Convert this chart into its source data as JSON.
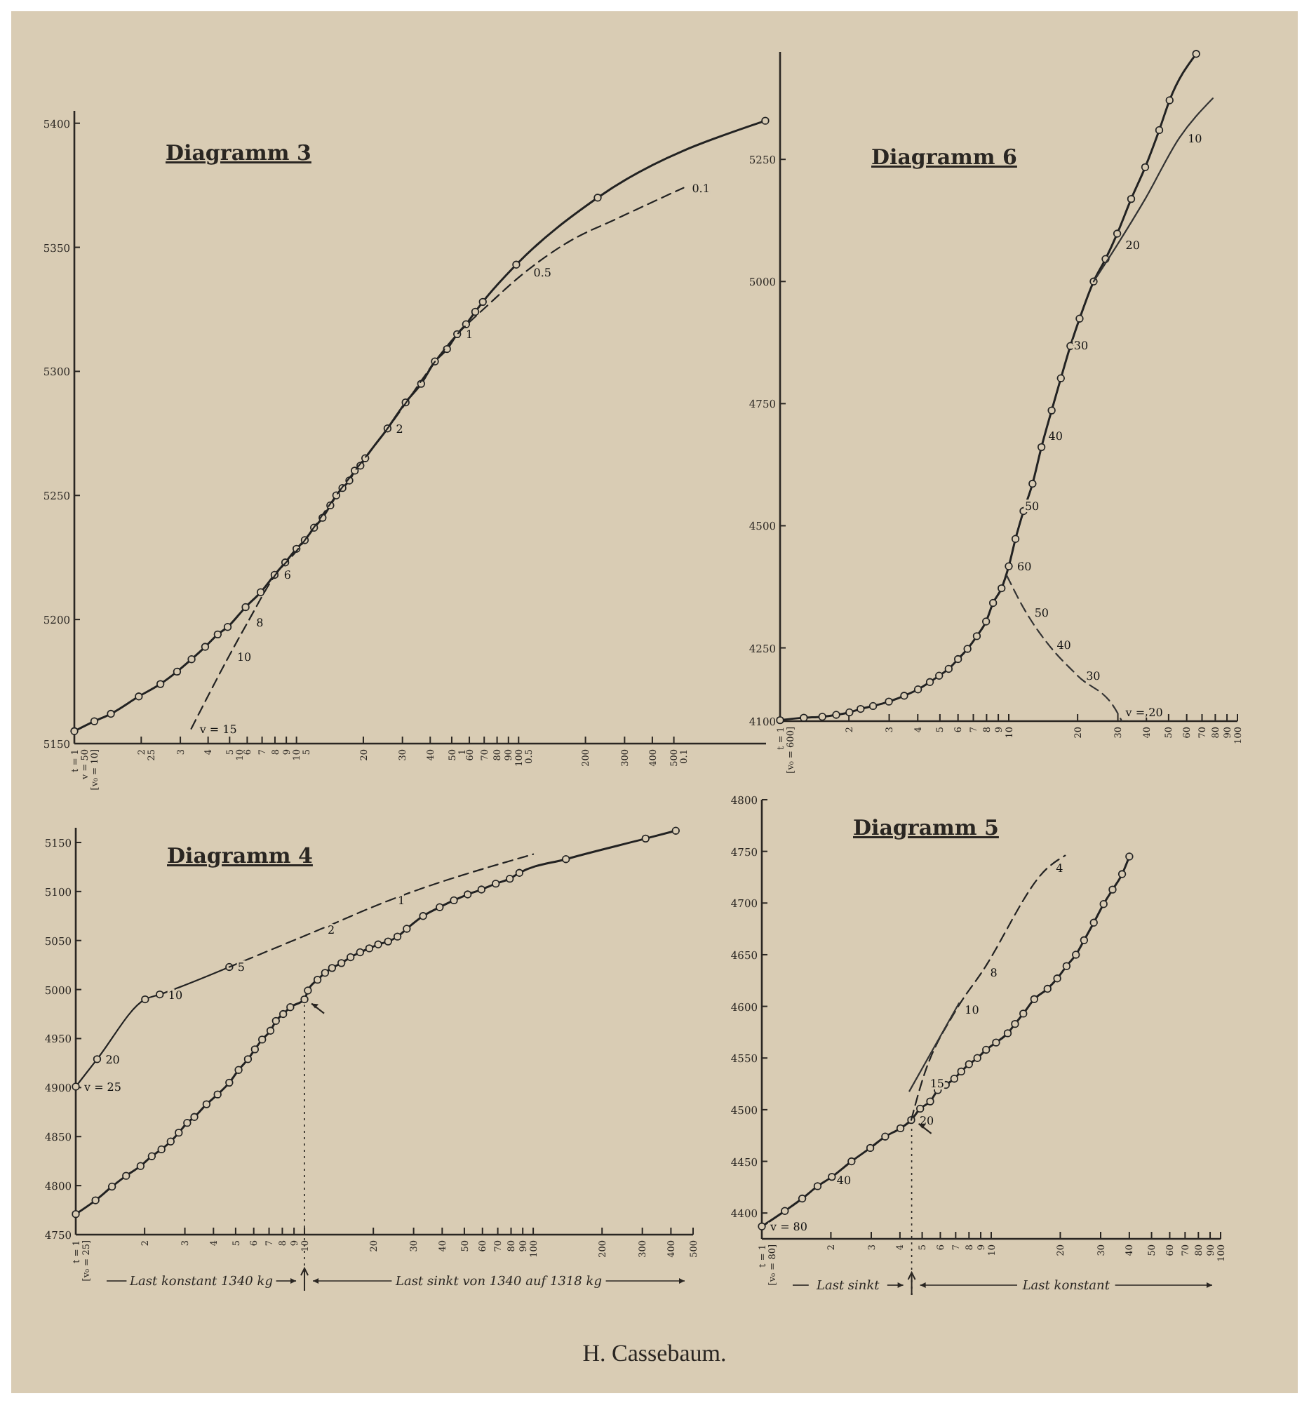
{
  "chart_data": [
    {
      "type": "line",
      "title": "Diagramm 3",
      "log": "x",
      "xlim": [
        1,
        1300
      ],
      "ylim": [
        5150,
        5405
      ],
      "xticks": [
        {
          "value": 1,
          "label": "t = 1\nv = 50\n[v₀ = 10]"
        },
        {
          "value": 2,
          "label": "2\n25"
        },
        3,
        4,
        {
          "value": 5,
          "label": "5\n10"
        },
        6,
        7,
        8,
        9,
        {
          "value": 10,
          "label": "10\n5"
        },
        20,
        30,
        40,
        {
          "value": 50,
          "label": "50\n1"
        },
        60,
        70,
        80,
        90,
        {
          "value": 100,
          "label": "100\n0.5"
        },
        200,
        300,
        400,
        {
          "value": 500,
          "label": "500\n0.1"
        }
      ],
      "yticks": [
        5150,
        5200,
        5250,
        5300,
        5350,
        5400
      ],
      "series": [
        {
          "color": "#222222",
          "line_style": "solid",
          "marker": "circle",
          "x": [
            1,
            1.23,
            1.46,
            1.95,
            2.44,
            2.9,
            3.37,
            3.88,
            4.42,
            4.9,
            5.9,
            6.9,
            7.97,
            8.9,
            10,
            10.9,
            12,
            13.1,
            14.2,
            15.1,
            16.1,
            17.3,
            18.3,
            19.4,
            20.4,
            25.7,
            31,
            36.4,
            42,
            47.6,
            52.9,
            58,
            63.8,
            69,
            97.6,
            227,
            1290
          ],
          "values": [
            5155,
            5159,
            5162,
            5169,
            5174,
            5179,
            5184,
            5189,
            5194,
            5197,
            5205,
            5211,
            5218,
            5223,
            5228.5,
            5232,
            5237,
            5241,
            5246,
            5250,
            5253,
            5256,
            5260,
            5262,
            5265,
            5277,
            5287.5,
            5295,
            5304,
            5309,
            5315,
            5319,
            5324,
            5328,
            5343,
            5370,
            5401
          ]
        },
        {
          "color": "#222222",
          "line_style": "dashed",
          "marker": "none",
          "x": [
            3.36,
            4.95,
            6.04,
            8.04,
            10,
            15.1,
            25.7,
            53,
            71.3,
            107,
            170,
            276,
            553
          ],
          "values": [
            5156,
            5185,
            5199,
            5218,
            5227.6,
            5250,
            5277,
            5315,
            5326,
            5340,
            5352.5,
            5361.5,
            5374
          ]
        }
      ],
      "annotations": [
        {
          "text": "v = 15",
          "x": 3.36,
          "y": 5156
        },
        {
          "text": "10",
          "x": 4.95,
          "y": 5185
        },
        {
          "text": "8",
          "x": 6.04,
          "y": 5199
        },
        {
          "text": "6",
          "x": 8.04,
          "y": 5218
        },
        {
          "text": "2",
          "x": 25.7,
          "y": 5277
        },
        {
          "text": "1",
          "x": 53,
          "y": 5315
        },
        {
          "text": "0.5",
          "x": 107,
          "y": 5340
        },
        {
          "text": "0.1",
          "x": 553,
          "y": 5374
        }
      ]
    },
    {
      "type": "line",
      "title": "Diagramm 6",
      "log": "x",
      "xlim": [
        1,
        100
      ],
      "ylim": [
        4100,
        5470
      ],
      "xticks": [
        {
          "value": 1,
          "label": "t = 1\n[v₀ = 600]"
        },
        2,
        3,
        4,
        5,
        6,
        7,
        8,
        9,
        10,
        20,
        30,
        40,
        50,
        60,
        70,
        80,
        90,
        100
      ],
      "yticks": [
        4100,
        4250,
        4500,
        4750,
        5000,
        5250
      ],
      "series": [
        {
          "color": "#222222",
          "line_style": "solid",
          "marker": "circle",
          "x": [
            1,
            1.27,
            1.53,
            1.76,
            2.01,
            2.25,
            2.55,
            2.99,
            3.49,
            4.01,
            4.52,
            4.96,
            5.46,
            6,
            6.6,
            7.25,
            7.96,
            8.54,
            9.3,
            10,
            10.7,
            11.6,
            12.7,
            13.9,
            15.4,
            16.9,
            18.6,
            20.4,
            23.5,
            26.5,
            29.8,
            34.3,
            39.5,
            45.5,
            50.5,
            66
          ],
          "values": [
            4102,
            4107,
            4109,
            4113,
            4118,
            4125,
            4131,
            4140,
            4152,
            4165,
            4180,
            4193,
            4207,
            4227,
            4248,
            4274,
            4304,
            4342,
            4372,
            4417,
            4473,
            4530,
            4586,
            4661,
            4736,
            4802,
            4868,
            4924,
            5000,
            5046,
            5098,
            5169,
            5234,
            5310,
            5371,
            5466
          ]
        },
        {
          "color": "#333333",
          "line_style": "solid",
          "marker": "none",
          "x": [
            23.5,
            29.8,
            39.5,
            55.7,
            78
          ],
          "values": [
            5000,
            5075,
            5169,
            5294,
            5375
          ]
        },
        {
          "color": "#333333",
          "line_style": "dashed",
          "marker": "none",
          "x": [
            9.8,
            11.9,
            14.9,
            20,
            29.8,
            31.2
          ],
          "values": [
            4398,
            4323,
            4257,
            4193,
            4118,
            4100
          ]
        }
      ],
      "annotations": [
        {
          "text": "60",
          "x": 10,
          "y": 4417
        },
        {
          "text": "50",
          "x": 10.8,
          "y": 4541
        },
        {
          "text": "40",
          "x": 13.7,
          "y": 4684
        },
        {
          "text": "30",
          "x": 17.7,
          "y": 4870
        },
        {
          "text": "20",
          "x": 29.8,
          "y": 5075
        },
        {
          "text": "10",
          "x": 55.7,
          "y": 5294
        },
        {
          "text": "50",
          "x": 11.9,
          "y": 4323
        },
        {
          "text": "40",
          "x": 14.9,
          "y": 4257
        },
        {
          "text": "30",
          "x": 20,
          "y": 4193
        },
        {
          "text": "v = 20",
          "x": 29.8,
          "y": 4118
        }
      ]
    },
    {
      "type": "line",
      "title": "Diagramm 4",
      "log": "x",
      "xlim": [
        1,
        500
      ],
      "ylim": [
        4750,
        5165
      ],
      "xticks": [
        {
          "value": 1,
          "label": "t = 1\n[v₀ = 25]"
        },
        2,
        3,
        4,
        5,
        6,
        7,
        8,
        9,
        10,
        20,
        30,
        40,
        50,
        60,
        70,
        80,
        90,
        100,
        200,
        300,
        400,
        500
      ],
      "yticks": [
        4750,
        4800,
        4850,
        4900,
        4950,
        5000,
        5050,
        5100,
        5150
      ],
      "ref_lines": [
        {
          "axis": "x",
          "value": 10
        }
      ],
      "series": [
        {
          "color": "#222222",
          "line_style": "solid",
          "marker": "circle",
          "x": [
            1,
            1.22,
            1.44,
            1.66,
            1.92,
            2.15,
            2.37,
            2.6,
            2.82,
            3.07,
            3.3,
            3.73,
            4.17,
            4.69,
            5.15,
            5.66,
            6.07,
            6.53,
            7.1,
            7.5,
            8.07,
            8.67,
            10,
            10.35,
            11.4,
            12.3,
            13.2,
            14.5,
            15.9,
            17.5,
            19.2,
            21,
            23.2,
            25.5,
            28,
            33,
            39,
            45,
            51.7,
            59.4,
            68.6,
            79,
            87,
            139,
            310,
            420
          ],
          "values": [
            4771,
            4785,
            4799,
            4810,
            4820,
            4830,
            4837,
            4845,
            4854,
            4864,
            4870,
            4883,
            4893,
            4905,
            4918,
            4929,
            4939,
            4949,
            4958,
            4968,
            4975,
            4982,
            4990,
            4999,
            5010,
            5017,
            5022,
            5027,
            5033,
            5038,
            5042,
            5046,
            5049,
            5054,
            5062,
            5075,
            5084,
            5091,
            5097,
            5102,
            5108,
            5113,
            5119,
            5133,
            5154,
            5162
          ]
        },
        {
          "color": "#222222",
          "line_style": "solid",
          "marker": "circle",
          "x": [
            1,
            1.24,
            2.01,
            2.33,
            4.69
          ],
          "values": [
            4901,
            4929,
            4990,
            4995,
            5023
          ]
        },
        {
          "color": "#222222",
          "line_style": "dashed",
          "marker": "none",
          "x": [
            4.69,
            11.6,
            23.5,
            100
          ],
          "values": [
            5023,
            5061,
            5091,
            5138
          ]
        }
      ],
      "annotations": [
        "Last konstant 1340 kg",
        "Last sinkt von 1340 auf 1318 kg",
        {
          "text": "v = 25",
          "x": 1,
          "y": 4901
        },
        {
          "text": "20",
          "x": 1.24,
          "y": 4929
        },
        {
          "text": "10",
          "x": 2.33,
          "y": 4995
        },
        {
          "text": "5",
          "x": 4.69,
          "y": 5023
        },
        {
          "text": "2",
          "x": 11.6,
          "y": 5061
        },
        {
          "text": "1",
          "x": 23.5,
          "y": 5091
        }
      ]
    },
    {
      "type": "line",
      "title": "Diagramm 5",
      "log": "x",
      "xlim": [
        1,
        100
      ],
      "ylim": [
        4375,
        4800
      ],
      "xticks": [
        {
          "value": 1,
          "label": "t = 1\n[v₀ = 80]"
        },
        2,
        3,
        4,
        5,
        6,
        7,
        8,
        9,
        10,
        20,
        30,
        40,
        50,
        60,
        70,
        80,
        90,
        100
      ],
      "yticks": [
        4400,
        4450,
        4500,
        4550,
        4600,
        4650,
        4700,
        4750,
        4800
      ],
      "ref_lines": [
        {
          "axis": "x",
          "value": 4.5
        }
      ],
      "series": [
        {
          "color": "#222222",
          "line_style": "solid",
          "marker": "circle",
          "x": [
            1,
            1.26,
            1.5,
            1.75,
            2.02,
            2.46,
            2.97,
            3.45,
            4.02,
            4.48,
            4.9,
            5.42,
            5.85,
            6.34,
            6.9,
            7.4,
            8,
            8.7,
            9.5,
            10.5,
            11.8,
            12.7,
            13.8,
            15.4,
            17.6,
            19.4,
            21.3,
            23.4,
            25.4,
            28,
            30.9,
            33.8,
            37.2,
            40
          ],
          "values": [
            4387,
            4402,
            4414,
            4426,
            4435,
            4450,
            4463,
            4474,
            4482,
            4490,
            4501,
            4508,
            4519,
            4524,
            4530,
            4537,
            4544,
            4550,
            4558,
            4565,
            4574,
            4583,
            4593,
            4607,
            4617,
            4627,
            4639,
            4650,
            4664,
            4681,
            4699,
            4713,
            4728,
            4745
          ]
        },
        {
          "color": "#222222",
          "line_style": "dashed",
          "marker": "none",
          "x": [
            4.48,
            4.97,
            7.05,
            9.1,
            17.6,
            21
          ],
          "values": [
            4490,
            4526,
            4597,
            4633,
            4734,
            4746
          ]
        },
        {
          "color": "#333333",
          "line_style": "solid",
          "marker": "none",
          "x": [
            4.4,
            7.23
          ],
          "values": [
            4518,
            4603
          ]
        }
      ],
      "annotations": [
        "Last sinkt",
        "Last konstant",
        "H. Cassebaum.",
        {
          "text": "v = 80",
          "x": 1,
          "y": 4387
        },
        {
          "text": "40",
          "x": 1.95,
          "y": 4432
        },
        {
          "text": "20",
          "x": 4.48,
          "y": 4490
        },
        {
          "text": "15",
          "x": 4.97,
          "y": 4526
        },
        {
          "text": "10",
          "x": 7.05,
          "y": 4597
        },
        {
          "text": "8",
          "x": 9.1,
          "y": 4633
        },
        {
          "text": "4",
          "x": 17.6,
          "y": 4734
        }
      ]
    }
  ]
}
